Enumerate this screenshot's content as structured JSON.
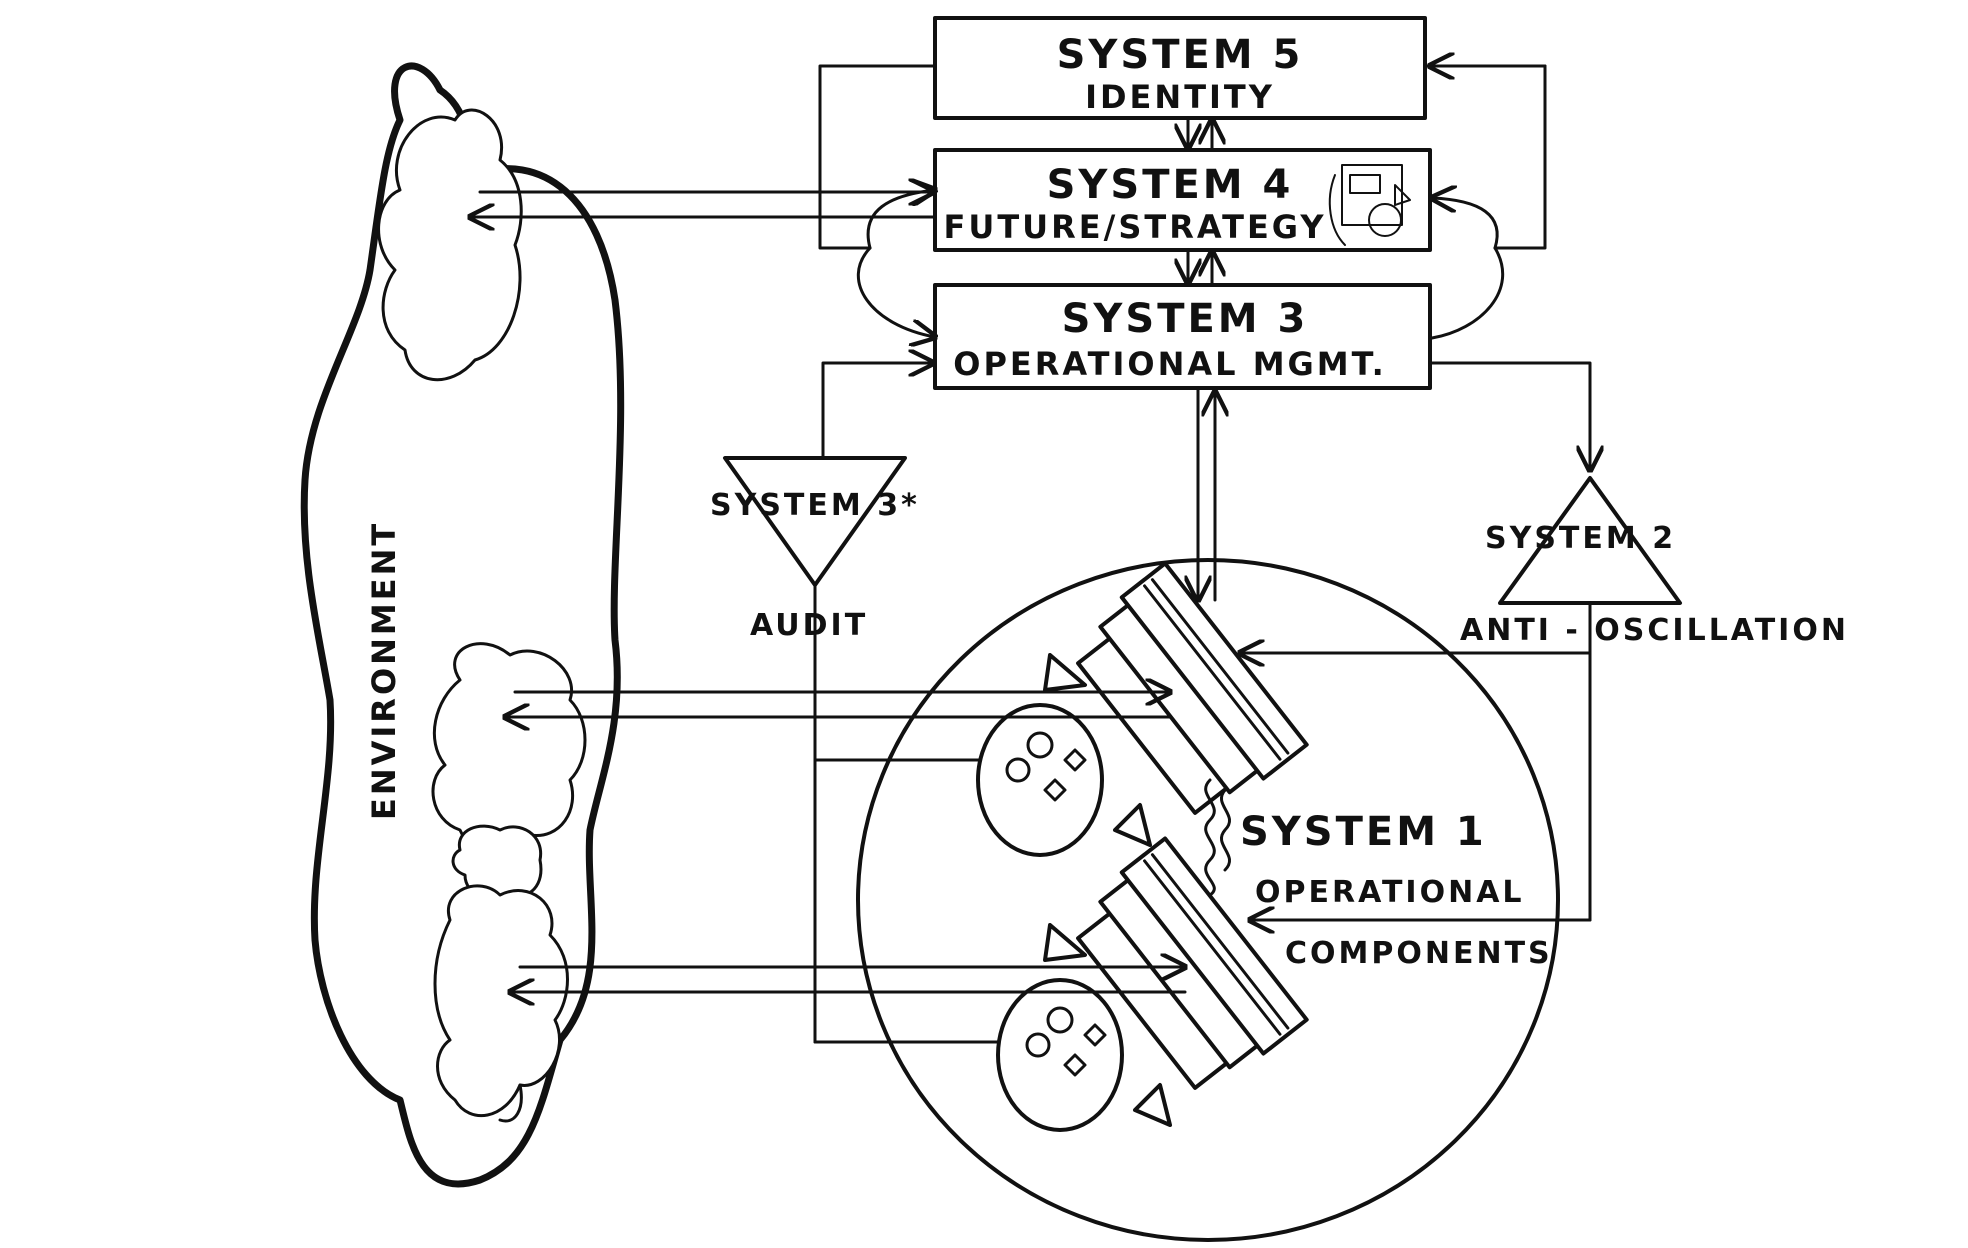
{
  "environment": {
    "label": "ENVIRONMENT"
  },
  "system5": {
    "title": "SYSTEM 5",
    "subtitle": "IDENTITY"
  },
  "system4": {
    "title": "SYSTEM 4",
    "subtitle": "FUTURE/STRATEGY"
  },
  "system3": {
    "title": "SYSTEM 3",
    "subtitle": "OPERATIONAL MGMT."
  },
  "system3star": {
    "title": "SYSTEM 3*",
    "subtitle": "AUDIT"
  },
  "system2": {
    "title": "SYSTEM 2",
    "subtitle": "ANTI - OSCILLATION"
  },
  "system1": {
    "title": "SYSTEM 1",
    "subtitle_line1": "OPERATIONAL",
    "subtitle_line2": "COMPONENTS"
  },
  "colors": {
    "ink": "#111111",
    "background": "#ffffff"
  }
}
